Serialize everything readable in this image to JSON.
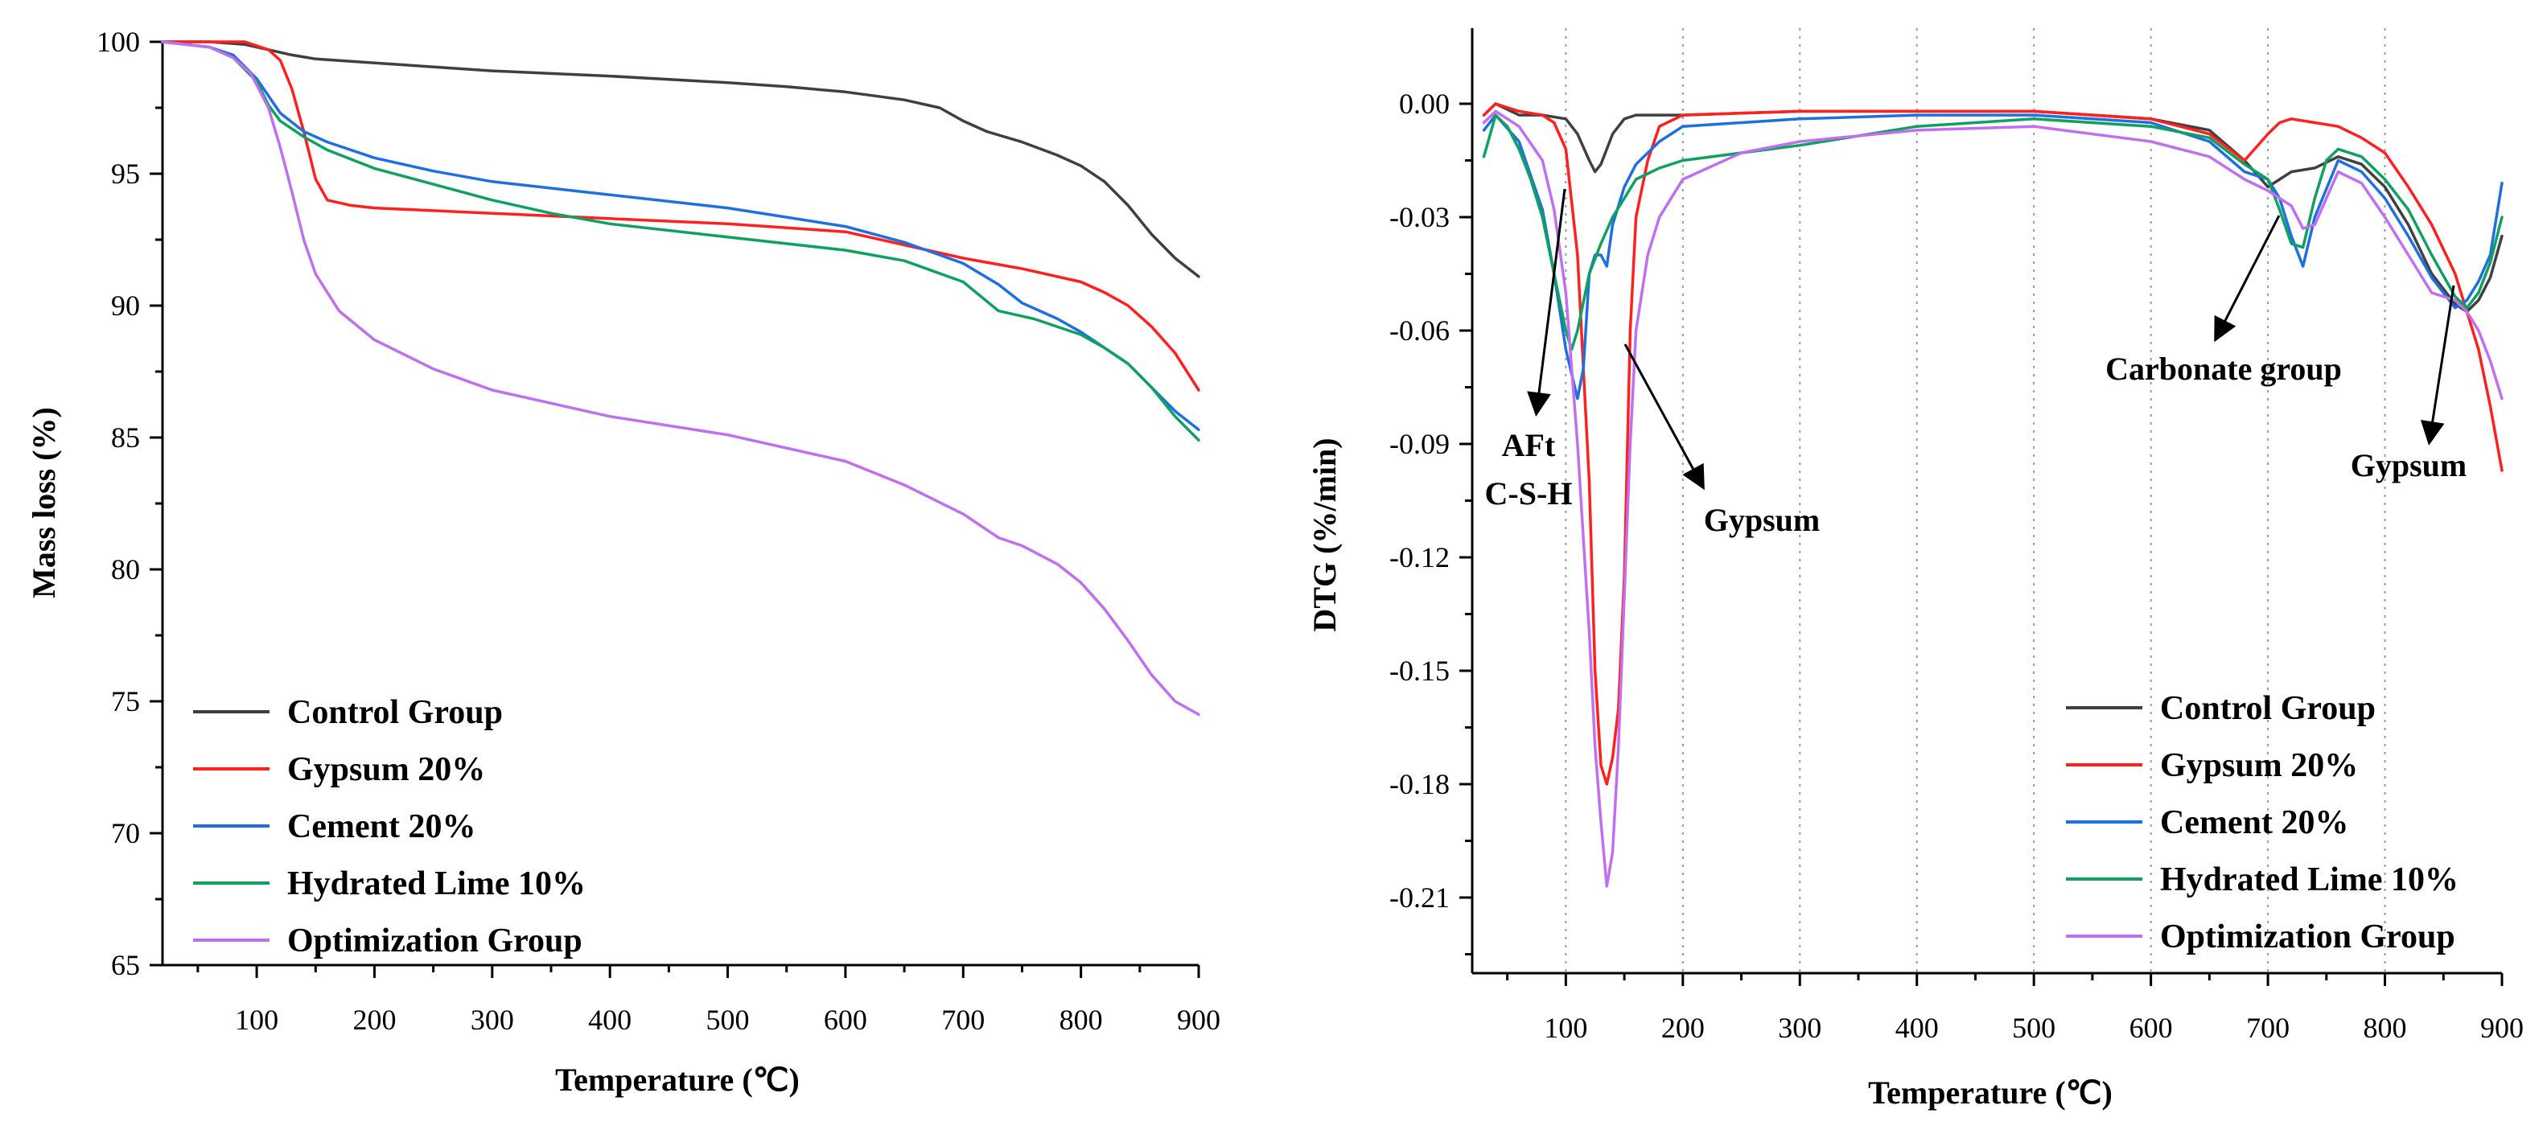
{
  "chart_data": [
    {
      "id": "tg",
      "type": "line",
      "title": "",
      "xlabel": "Temperature (℃)",
      "ylabel": "Mass loss (%)",
      "xlim": [
        20,
        900
      ],
      "ylim": [
        65,
        100
      ],
      "xticks": [
        100,
        200,
        300,
        400,
        500,
        600,
        700,
        800,
        900
      ],
      "yticks": [
        65,
        70,
        75,
        80,
        85,
        90,
        95,
        100
      ],
      "grid": false,
      "legend_position": "bottom-left",
      "series": [
        {
          "name": "Control Group",
          "color": "#404040",
          "x": [
            20,
            60,
            90,
            110,
            130,
            150,
            200,
            300,
            400,
            500,
            550,
            600,
            650,
            680,
            700,
            720,
            750,
            780,
            800,
            820,
            840,
            860,
            880,
            900
          ],
          "y": [
            100,
            100,
            99.9,
            99.7,
            99.5,
            99.35,
            99.2,
            98.9,
            98.7,
            98.45,
            98.3,
            98.1,
            97.8,
            97.5,
            97.0,
            96.6,
            96.2,
            95.7,
            95.3,
            94.7,
            93.8,
            92.7,
            91.8,
            91.1
          ]
        },
        {
          "name": "Gypsum 20%",
          "color": "#ff2020",
          "x": [
            20,
            90,
            110,
            120,
            130,
            140,
            150,
            160,
            180,
            200,
            300,
            400,
            500,
            600,
            700,
            750,
            800,
            820,
            840,
            860,
            880,
            900
          ],
          "y": [
            100,
            100,
            99.7,
            99.3,
            98.2,
            96.6,
            94.8,
            94.0,
            93.8,
            93.7,
            93.5,
            93.3,
            93.1,
            92.8,
            91.8,
            91.4,
            90.9,
            90.5,
            90.0,
            89.2,
            88.2,
            86.8
          ]
        },
        {
          "name": "Cement 20%",
          "color": "#1f6fe0",
          "x": [
            20,
            60,
            80,
            100,
            120,
            140,
            160,
            200,
            250,
            300,
            400,
            500,
            600,
            650,
            700,
            730,
            750,
            780,
            800,
            820,
            840,
            860,
            880,
            900
          ],
          "y": [
            100,
            99.8,
            99.5,
            98.6,
            97.3,
            96.6,
            96.2,
            95.6,
            95.1,
            94.7,
            94.2,
            93.7,
            93.0,
            92.4,
            91.6,
            90.8,
            90.1,
            89.5,
            89.0,
            88.4,
            87.8,
            86.9,
            86.0,
            85.3
          ]
        },
        {
          "name": "Hydrated Lime 10%",
          "color": "#10a060",
          "x": [
            20,
            60,
            80,
            100,
            110,
            120,
            140,
            160,
            200,
            250,
            300,
            350,
            400,
            500,
            600,
            650,
            700,
            730,
            760,
            800,
            820,
            840,
            860,
            880,
            900
          ],
          "y": [
            100,
            99.8,
            99.4,
            98.5,
            97.6,
            97.0,
            96.4,
            95.9,
            95.2,
            94.6,
            94.0,
            93.5,
            93.1,
            92.6,
            92.1,
            91.7,
            90.9,
            89.8,
            89.5,
            88.9,
            88.4,
            87.8,
            86.9,
            85.8,
            84.9
          ]
        },
        {
          "name": "Optimization Group",
          "color": "#c070ee",
          "x": [
            20,
            60,
            80,
            95,
            110,
            120,
            130,
            140,
            150,
            170,
            200,
            250,
            300,
            400,
            500,
            600,
            650,
            700,
            730,
            750,
            780,
            800,
            820,
            840,
            860,
            880,
            900
          ],
          "y": [
            100,
            99.8,
            99.4,
            98.8,
            97.5,
            96.0,
            94.3,
            92.5,
            91.2,
            89.8,
            88.7,
            87.6,
            86.8,
            85.8,
            85.1,
            84.1,
            83.2,
            82.1,
            81.2,
            80.9,
            80.2,
            79.5,
            78.5,
            77.3,
            76.0,
            75.0,
            74.5
          ]
        }
      ]
    },
    {
      "id": "dtg",
      "type": "line",
      "title": "",
      "xlabel": "Temperature (℃)",
      "ylabel": "DTG (%/min)",
      "xlim": [
        20,
        900
      ],
      "ylim": [
        -0.23,
        0.02
      ],
      "xticks": [
        100,
        200,
        300,
        400,
        500,
        600,
        700,
        800,
        900
      ],
      "yticks": [
        0.0,
        -0.03,
        -0.06,
        -0.09,
        -0.12,
        -0.15,
        -0.18,
        -0.21
      ],
      "ytick_labels": [
        "0.00",
        "-0.03",
        "-0.06",
        "-0.09",
        "-0.12",
        "-0.15",
        "-0.18",
        "-0.21"
      ],
      "grid": true,
      "legend_position": "bottom-right",
      "series": [
        {
          "name": "Control Group",
          "color": "#404040",
          "x": [
            30,
            40,
            60,
            80,
            100,
            110,
            120,
            125,
            130,
            140,
            150,
            160,
            200,
            300,
            400,
            500,
            600,
            650,
            680,
            700,
            720,
            740,
            760,
            780,
            800,
            820,
            840,
            860,
            870,
            880,
            890,
            900
          ],
          "y": [
            -0.003,
            0.0,
            -0.003,
            -0.003,
            -0.004,
            -0.008,
            -0.015,
            -0.018,
            -0.016,
            -0.008,
            -0.004,
            -0.003,
            -0.003,
            -0.002,
            -0.002,
            -0.002,
            -0.004,
            -0.007,
            -0.015,
            -0.022,
            -0.018,
            -0.017,
            -0.014,
            -0.016,
            -0.022,
            -0.032,
            -0.045,
            -0.053,
            -0.055,
            -0.052,
            -0.046,
            -0.035
          ]
        },
        {
          "name": "Gypsum 20%",
          "color": "#ff2020",
          "x": [
            30,
            40,
            60,
            80,
            90,
            100,
            110,
            120,
            125,
            130,
            135,
            140,
            145,
            150,
            155,
            160,
            170,
            180,
            200,
            300,
            400,
            500,
            600,
            650,
            680,
            700,
            710,
            720,
            740,
            760,
            780,
            800,
            820,
            840,
            860,
            870,
            880,
            890,
            900
          ],
          "y": [
            -0.003,
            0.0,
            -0.002,
            -0.003,
            -0.005,
            -0.012,
            -0.04,
            -0.1,
            -0.15,
            -0.175,
            -0.18,
            -0.173,
            -0.16,
            -0.125,
            -0.06,
            -0.03,
            -0.015,
            -0.006,
            -0.003,
            -0.002,
            -0.002,
            -0.002,
            -0.004,
            -0.008,
            -0.015,
            -0.008,
            -0.005,
            -0.004,
            -0.005,
            -0.006,
            -0.009,
            -0.013,
            -0.022,
            -0.032,
            -0.045,
            -0.055,
            -0.065,
            -0.08,
            -0.097
          ]
        },
        {
          "name": "Cement 20%",
          "color": "#1f6fe0",
          "x": [
            30,
            40,
            60,
            80,
            90,
            100,
            110,
            115,
            120,
            125,
            130,
            135,
            140,
            150,
            160,
            180,
            200,
            300,
            400,
            500,
            600,
            650,
            680,
            700,
            710,
            720,
            730,
            740,
            760,
            780,
            800,
            820,
            840,
            860,
            870,
            880,
            890,
            900
          ],
          "y": [
            -0.007,
            -0.003,
            -0.01,
            -0.028,
            -0.045,
            -0.065,
            -0.078,
            -0.07,
            -0.045,
            -0.04,
            -0.04,
            -0.043,
            -0.032,
            -0.022,
            -0.016,
            -0.01,
            -0.006,
            -0.004,
            -0.003,
            -0.003,
            -0.005,
            -0.01,
            -0.018,
            -0.02,
            -0.025,
            -0.035,
            -0.043,
            -0.03,
            -0.015,
            -0.018,
            -0.025,
            -0.035,
            -0.046,
            -0.054,
            -0.052,
            -0.047,
            -0.04,
            -0.021
          ]
        },
        {
          "name": "Hydrated Lime 10%",
          "color": "#10a060",
          "x": [
            30,
            40,
            50,
            60,
            70,
            80,
            90,
            100,
            105,
            110,
            120,
            130,
            140,
            150,
            160,
            180,
            200,
            250,
            300,
            400,
            500,
            600,
            650,
            680,
            700,
            710,
            720,
            730,
            740,
            750,
            760,
            780,
            800,
            820,
            840,
            860,
            870,
            880,
            890,
            900
          ],
          "y": [
            -0.014,
            -0.003,
            -0.006,
            -0.012,
            -0.02,
            -0.03,
            -0.045,
            -0.06,
            -0.065,
            -0.06,
            -0.045,
            -0.037,
            -0.03,
            -0.025,
            -0.02,
            -0.017,
            -0.015,
            -0.013,
            -0.011,
            -0.006,
            -0.004,
            -0.006,
            -0.009,
            -0.016,
            -0.02,
            -0.028,
            -0.037,
            -0.038,
            -0.025,
            -0.015,
            -0.012,
            -0.014,
            -0.02,
            -0.028,
            -0.04,
            -0.051,
            -0.054,
            -0.05,
            -0.042,
            -0.03
          ]
        },
        {
          "name": "Optimization Group",
          "color": "#c070ee",
          "x": [
            30,
            40,
            60,
            80,
            90,
            100,
            110,
            120,
            125,
            130,
            135,
            140,
            145,
            150,
            155,
            160,
            170,
            180,
            200,
            250,
            300,
            400,
            500,
            600,
            650,
            680,
            700,
            720,
            730,
            740,
            760,
            780,
            800,
            820,
            840,
            860,
            870,
            880,
            890,
            900
          ],
          "y": [
            -0.005,
            -0.002,
            -0.006,
            -0.015,
            -0.028,
            -0.05,
            -0.09,
            -0.14,
            -0.17,
            -0.19,
            -0.207,
            -0.198,
            -0.17,
            -0.13,
            -0.09,
            -0.06,
            -0.04,
            -0.03,
            -0.02,
            -0.013,
            -0.01,
            -0.007,
            -0.006,
            -0.01,
            -0.014,
            -0.02,
            -0.023,
            -0.027,
            -0.033,
            -0.032,
            -0.018,
            -0.021,
            -0.03,
            -0.04,
            -0.05,
            -0.052,
            -0.055,
            -0.06,
            -0.068,
            -0.078
          ]
        }
      ],
      "annotations": [
        {
          "id": "aft",
          "lines": [
            "AFt",
            "C-S-H"
          ]
        },
        {
          "id": "gypsum-low",
          "lines": [
            "Gypsum"
          ]
        },
        {
          "id": "carbonate",
          "lines": [
            "Carbonate group"
          ]
        },
        {
          "id": "gypsum-high",
          "lines": [
            "Gypsum"
          ]
        }
      ]
    }
  ]
}
